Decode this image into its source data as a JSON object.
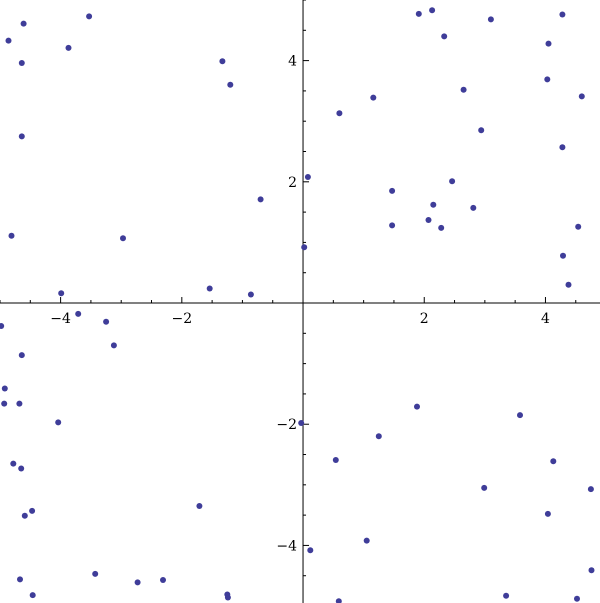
{
  "chart_data": {
    "type": "scatter",
    "title": "",
    "xlabel": "",
    "ylabel": "",
    "xlim": [
      -5.0,
      4.9
    ],
    "ylim": [
      -4.95,
      5.0
    ],
    "grid": false,
    "legend": "none",
    "marker_color": "#3f3d99",
    "x_ticks": [
      {
        "value": -4,
        "label": "−4"
      },
      {
        "value": -2,
        "label": "−2"
      },
      {
        "value": 2,
        "label": "2"
      },
      {
        "value": 4,
        "label": "4"
      }
    ],
    "y_ticks": [
      {
        "value": -4,
        "label": "−4"
      },
      {
        "value": -2,
        "label": "−2"
      },
      {
        "value": 2,
        "label": "2"
      },
      {
        "value": 4,
        "label": "4"
      }
    ],
    "series": [
      {
        "x": [
          -4.86,
          -4.61,
          -3.53,
          -4.64,
          -3.87,
          -1.33,
          -1.2,
          -4.64,
          -0.7,
          -4.81,
          -2.97,
          -3.99,
          -1.54,
          -0.86,
          1.91,
          2.13,
          3.1,
          4.28,
          2.33,
          4.05,
          4.03,
          2.65,
          4.6,
          0.6,
          1.16,
          2.94,
          4.28,
          0.08,
          1.47,
          2.46,
          2.07,
          1.47,
          2.15,
          2.81,
          2.28,
          4.54,
          0.02,
          4.29,
          4.38,
          -3.71,
          -4.98,
          -3.25,
          -4.64,
          -3.12,
          -4.92,
          -4.93,
          -4.68,
          -4.04,
          -4.78,
          -4.65,
          -4.59,
          -4.47,
          -1.71,
          -4.67,
          -3.43,
          -2.73,
          -2.31,
          -1.25,
          -1.24,
          -4.46,
          -4.37,
          -0.03,
          1.88,
          3.58,
          1.25,
          0.54,
          4.13,
          2.99,
          4.75,
          4.04,
          1.05,
          0.12,
          4.76,
          3.35,
          0.59,
          4.52
        ],
        "y": [
          4.33,
          4.61,
          4.73,
          3.96,
          4.21,
          3.99,
          3.6,
          2.75,
          1.71,
          1.11,
          1.07,
          0.16,
          0.24,
          0.14,
          4.77,
          4.83,
          4.68,
          4.76,
          4.4,
          4.28,
          3.69,
          3.52,
          3.41,
          3.13,
          3.39,
          2.85,
          2.57,
          2.08,
          1.85,
          2.01,
          1.37,
          1.28,
          1.62,
          1.57,
          1.24,
          1.26,
          0.92,
          0.78,
          0.3,
          -0.18,
          -0.38,
          -0.31,
          -0.86,
          -0.7,
          -1.41,
          -1.66,
          -1.66,
          -1.97,
          -2.65,
          -2.73,
          -3.51,
          -3.43,
          -3.35,
          -4.56,
          -4.47,
          -4.61,
          -4.57,
          -4.81,
          -4.86,
          -4.82,
          -5.0,
          -1.98,
          -1.71,
          -1.85,
          -2.2,
          -2.59,
          -2.61,
          -3.05,
          -3.07,
          -3.48,
          -3.92,
          -4.08,
          -4.41,
          -4.83,
          -4.92,
          -4.88
        ]
      }
    ]
  }
}
